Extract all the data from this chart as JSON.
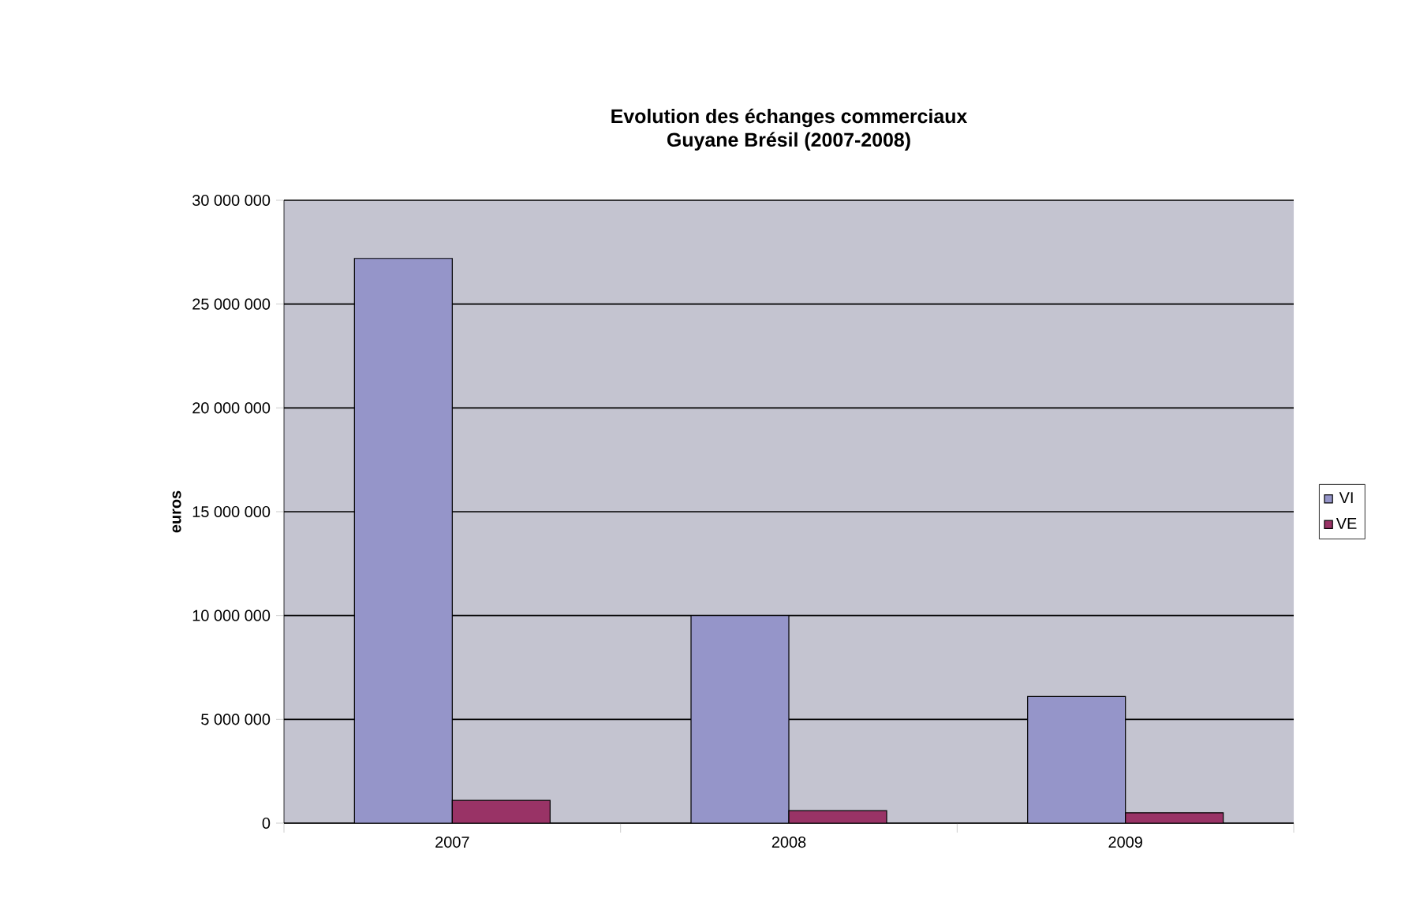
{
  "chart_data": {
    "type": "bar",
    "title": "Evolution des échanges commerciaux\nGuyane Brésil (2007-2008)",
    "ylabel": "euros",
    "categories": [
      "2007",
      "2008",
      "2009"
    ],
    "series": [
      {
        "name": "VI",
        "color": "#9595c9",
        "values": [
          27200000,
          10000000,
          6100000
        ]
      },
      {
        "name": "VE",
        "color": "#993366",
        "values": [
          1100000,
          600000,
          500000
        ]
      }
    ],
    "ylim": [
      0,
      30000000
    ],
    "yticks": [
      {
        "value": 0,
        "label": "0"
      },
      {
        "value": 5000000,
        "label": "5 000 000"
      },
      {
        "value": 10000000,
        "label": "10 000 000"
      },
      {
        "value": 15000000,
        "label": "15 000 000"
      },
      {
        "value": 20000000,
        "label": "20 000 000"
      },
      {
        "value": 25000000,
        "label": "25 000 000"
      },
      {
        "value": 30000000,
        "label": "30 000 000"
      }
    ],
    "grid": "y",
    "legend": "right"
  }
}
